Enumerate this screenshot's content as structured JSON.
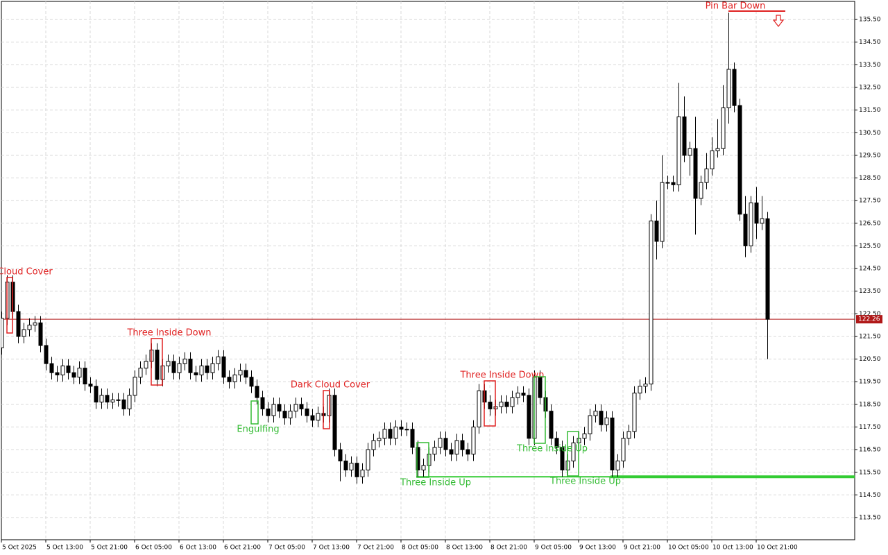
{
  "chart_data": {
    "type": "candlestick",
    "categories": [
      "5 Oct 2025",
      null,
      null,
      null,
      null,
      null,
      null,
      null,
      "5 Oct 13:00",
      null,
      null,
      null,
      null,
      null,
      null,
      null,
      "5 Oct 21:00",
      null,
      null,
      null,
      null,
      null,
      null,
      null,
      "6 Oct 05:00",
      null,
      null,
      null,
      null,
      null,
      null,
      null,
      "6 Oct 13:00",
      null,
      null,
      null,
      null,
      null,
      null,
      null,
      "6 Oct 21:00",
      null,
      null,
      null,
      null,
      null,
      null,
      null,
      "7 Oct 05:00",
      null,
      null,
      null,
      null,
      null,
      null,
      null,
      "7 Oct 13:00",
      null,
      null,
      null,
      null,
      null,
      null,
      null,
      "7 Oct 21:00",
      null,
      null,
      null,
      null,
      null,
      null,
      null,
      "8 Oct 05:00",
      null,
      null,
      null,
      null,
      null,
      null,
      null,
      "8 Oct 13:00",
      null,
      null,
      null,
      null,
      null,
      null,
      null,
      "8 Oct 21:00",
      null,
      null,
      null,
      null,
      null,
      null,
      null,
      "9 Oct 05:00",
      null,
      null,
      null,
      null,
      null,
      null,
      null,
      "9 Oct 13:00",
      null,
      null,
      null,
      null,
      null,
      null,
      null,
      "9 Oct 21:00",
      null,
      null,
      null,
      null,
      null,
      null,
      null,
      "10 Oct 05:00",
      null,
      null,
      null,
      null,
      null,
      null,
      null,
      "10 Oct 13:00",
      null,
      null,
      null,
      null,
      null,
      null,
      null,
      "10 Oct 21:00",
      null,
      null
    ],
    "open": [
      121.0,
      122.3,
      123.9,
      122.6,
      121.5,
      121.8,
      122.0,
      122.1,
      121.1,
      120.3,
      119.9,
      119.8,
      120.2,
      119.9,
      119.7,
      120.1,
      119.4,
      119.3,
      118.6,
      118.9,
      118.6,
      118.7,
      118.7,
      118.3,
      118.9,
      119.7,
      120.1,
      120.4,
      120.9,
      119.6,
      120.2,
      120.4,
      119.9,
      120.3,
      120.5,
      119.9,
      119.8,
      120.2,
      119.9,
      120.3,
      120.6,
      119.7,
      119.5,
      119.8,
      120.0,
      119.7,
      119.3,
      118.8,
      118.3,
      118.0,
      118.5,
      118.2,
      117.9,
      118.2,
      118.5,
      118.3,
      118.0,
      117.8,
      118.1,
      118.0,
      118.9,
      116.5,
      116.0,
      115.6,
      115.9,
      115.3,
      115.6,
      116.5,
      116.9,
      117.0,
      117.4,
      117.0,
      117.5,
      117.4,
      117.4,
      116.6,
      115.6,
      115.8,
      116.3,
      116.6,
      117.0,
      116.5,
      116.3,
      116.9,
      116.5,
      116.3,
      117.5,
      119.1,
      118.6,
      118.3,
      118.4,
      118.6,
      118.4,
      118.8,
      119.0,
      118.9,
      117.0,
      119.7,
      118.8,
      118.2,
      117.0,
      116.6,
      115.6,
      116.0,
      116.8,
      117.0,
      117.2,
      118.0,
      118.2,
      117.6,
      117.9,
      115.6,
      116.0,
      117.0,
      117.3,
      119.0,
      119.3,
      119.4,
      126.6,
      125.7,
      128.3,
      128.3,
      128.2,
      131.2,
      129.5,
      129.8,
      127.6,
      128.3,
      128.9,
      129.7,
      129.8,
      131.6,
      133.3,
      131.7,
      126.9,
      125.5,
      127.4,
      126.5,
      126.7
    ],
    "high": [
      122.6,
      124.2,
      124.2,
      122.9,
      122.1,
      122.3,
      122.4,
      122.4,
      121.4,
      120.6,
      120.2,
      120.5,
      120.5,
      120.2,
      120.4,
      120.4,
      119.7,
      119.6,
      119.2,
      119.2,
      119.0,
      119.0,
      119.0,
      119.2,
      120.0,
      120.4,
      120.7,
      121.2,
      121.2,
      120.5,
      120.7,
      120.7,
      120.6,
      120.8,
      120.8,
      120.2,
      120.5,
      120.5,
      120.6,
      120.9,
      120.9,
      120.0,
      120.1,
      120.3,
      120.3,
      120.0,
      119.6,
      119.1,
      118.6,
      118.8,
      118.8,
      118.5,
      118.5,
      118.8,
      118.8,
      118.6,
      118.3,
      118.4,
      118.4,
      119.2,
      119.2,
      116.8,
      116.3,
      116.2,
      116.2,
      115.9,
      116.8,
      117.2,
      117.3,
      117.7,
      117.7,
      117.8,
      117.8,
      117.7,
      117.7,
      116.9,
      116.1,
      116.6,
      116.9,
      117.3,
      117.3,
      116.8,
      117.2,
      117.2,
      116.8,
      117.8,
      119.4,
      119.4,
      118.9,
      118.7,
      118.9,
      118.9,
      119.1,
      119.3,
      119.3,
      119.2,
      120.0,
      120.0,
      119.1,
      118.5,
      117.3,
      116.9,
      116.3,
      117.1,
      117.3,
      117.5,
      118.3,
      118.5,
      118.5,
      118.2,
      118.2,
      116.3,
      117.3,
      117.6,
      119.3,
      119.6,
      119.7,
      126.9,
      127.5,
      129.5,
      128.6,
      128.6,
      132.7,
      132.1,
      130.1,
      131.2,
      128.6,
      129.6,
      130.3,
      131.1,
      132.6,
      135.8,
      133.6,
      132.0,
      127.7,
      127.7,
      128.1,
      127.7,
      127.0
    ],
    "low": [
      120.7,
      122.0,
      122.3,
      121.2,
      121.2,
      121.5,
      121.7,
      120.8,
      120.0,
      119.6,
      119.5,
      119.5,
      119.6,
      119.4,
      119.4,
      119.1,
      119.0,
      118.3,
      118.3,
      118.3,
      118.3,
      118.4,
      118.0,
      118.0,
      118.6,
      119.4,
      119.8,
      120.1,
      119.3,
      119.3,
      119.9,
      119.6,
      119.6,
      120.0,
      119.6,
      119.5,
      119.5,
      119.6,
      119.6,
      120.0,
      119.4,
      119.2,
      119.2,
      119.5,
      119.4,
      119.0,
      118.5,
      118.0,
      117.7,
      117.7,
      117.9,
      117.6,
      117.6,
      117.9,
      118.0,
      117.7,
      117.5,
      117.5,
      117.7,
      117.7,
      116.2,
      115.1,
      115.3,
      115.3,
      115.0,
      115.0,
      115.3,
      116.2,
      116.6,
      116.7,
      116.7,
      116.7,
      117.1,
      117.1,
      116.3,
      115.3,
      115.3,
      115.5,
      116.0,
      116.3,
      116.2,
      116.0,
      116.0,
      116.2,
      116.0,
      116.0,
      117.2,
      118.3,
      118.0,
      118.0,
      118.1,
      118.1,
      118.1,
      118.5,
      118.6,
      116.7,
      116.7,
      118.5,
      117.9,
      116.7,
      116.3,
      115.3,
      115.3,
      115.7,
      116.5,
      116.7,
      116.9,
      117.7,
      117.3,
      117.3,
      115.3,
      115.3,
      115.7,
      116.7,
      117.0,
      118.7,
      119.0,
      119.1,
      124.9,
      125.4,
      128.0,
      127.9,
      127.9,
      129.2,
      128.6,
      126.0,
      127.3,
      128.0,
      128.6,
      129.4,
      129.5,
      130.9,
      131.4,
      126.6,
      125.0,
      125.2,
      125.8,
      126.2,
      120.5
    ],
    "close": [
      122.3,
      123.9,
      122.6,
      121.5,
      121.8,
      122.0,
      122.1,
      121.1,
      120.3,
      119.9,
      119.8,
      120.2,
      119.9,
      119.7,
      120.1,
      119.4,
      119.3,
      118.6,
      118.9,
      118.6,
      118.7,
      118.7,
      118.3,
      118.9,
      119.7,
      120.1,
      120.4,
      120.9,
      119.6,
      120.2,
      120.4,
      119.9,
      120.3,
      120.5,
      119.9,
      119.8,
      120.2,
      119.9,
      120.3,
      120.6,
      119.7,
      119.5,
      119.8,
      120.0,
      119.7,
      119.3,
      118.8,
      118.3,
      118.0,
      118.5,
      118.2,
      117.9,
      118.2,
      118.5,
      118.3,
      118.0,
      117.8,
      118.1,
      118.0,
      118.9,
      116.5,
      116.0,
      115.6,
      115.9,
      115.3,
      115.6,
      116.5,
      116.9,
      117.0,
      117.4,
      117.0,
      117.5,
      117.4,
      117.4,
      116.6,
      115.6,
      115.8,
      116.3,
      116.6,
      117.0,
      116.5,
      116.3,
      116.9,
      116.5,
      116.3,
      117.5,
      119.1,
      118.6,
      118.3,
      118.4,
      118.6,
      118.4,
      118.8,
      119.0,
      118.9,
      117.0,
      119.7,
      118.8,
      118.2,
      117.0,
      116.6,
      115.6,
      116.0,
      116.8,
      117.0,
      117.2,
      118.0,
      118.2,
      117.6,
      117.9,
      115.6,
      116.0,
      117.0,
      117.3,
      119.0,
      119.3,
      119.4,
      126.6,
      125.7,
      128.3,
      128.3,
      128.2,
      131.2,
      129.5,
      129.8,
      127.6,
      128.3,
      128.9,
      129.7,
      129.8,
      131.6,
      133.3,
      131.7,
      126.9,
      125.5,
      127.4,
      126.5,
      126.7,
      122.26
    ],
    "ylim": [
      112.52,
      136.3
    ],
    "yticks": [
      {
        "value": 113.5,
        "label": "113.50"
      },
      {
        "value": 114.5,
        "label": "114.50"
      },
      {
        "value": 115.5,
        "label": "115.50"
      },
      {
        "value": 116.5,
        "label": "116.50"
      },
      {
        "value": 117.5,
        "label": "117.50"
      },
      {
        "value": 118.5,
        "label": "118.50"
      },
      {
        "value": 119.5,
        "label": "119.50"
      },
      {
        "value": 120.5,
        "label": "120.50"
      },
      {
        "value": 121.5,
        "label": "121.50"
      },
      {
        "value": 122.5,
        "label": "122.50"
      },
      {
        "value": 123.5,
        "label": "123.50"
      },
      {
        "value": 124.5,
        "label": "124.50"
      },
      {
        "value": 125.5,
        "label": "125.50"
      },
      {
        "value": 126.5,
        "label": "126.50"
      },
      {
        "value": 127.5,
        "label": "127.50"
      },
      {
        "value": 128.5,
        "label": "128.50"
      },
      {
        "value": 129.5,
        "label": "129.50"
      },
      {
        "value": 130.5,
        "label": "130.50"
      },
      {
        "value": 131.5,
        "label": "131.50"
      },
      {
        "value": 132.5,
        "label": "132.50"
      },
      {
        "value": 133.5,
        "label": "133.50"
      },
      {
        "value": 134.5,
        "label": "134.50"
      },
      {
        "value": 135.5,
        "label": "135.50"
      }
    ],
    "grid": true,
    "price_line": {
      "value": 122.26,
      "color": "#b01818"
    },
    "support_line": {
      "value": 115.3,
      "color": "#33cc33"
    },
    "annotations": [
      {
        "text": "Cloud Cover",
        "color": "#e02020"
      },
      {
        "text": "Three Inside Down",
        "color": "#e02020"
      },
      {
        "text": "Engulfing",
        "color": "#33bb33"
      },
      {
        "text": "Dark Cloud Cover",
        "color": "#e02020"
      },
      {
        "text": "Three Inside Up",
        "color": "#33bb33"
      },
      {
        "text": "Three Inside Down",
        "color": "#e02020"
      },
      {
        "text": "Three Inside Up",
        "color": "#33bb33"
      },
      {
        "text": "Three Inside Up",
        "color": "#33bb33"
      },
      {
        "text": "Pin Bar Down",
        "color": "#e02020"
      }
    ]
  }
}
